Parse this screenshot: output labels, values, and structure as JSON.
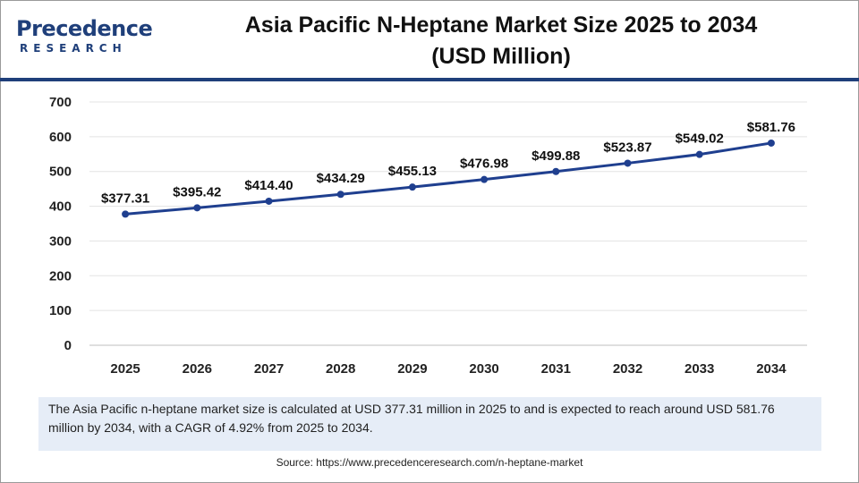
{
  "brand": {
    "name": "Precedence",
    "sub": "RESEARCH",
    "color": "#1f3f7a"
  },
  "title_line1": "Asia Pacific N-Heptane Market Size 2025 to 2034",
  "title_line2": "(USD Million)",
  "chart_data": {
    "type": "line",
    "categories": [
      "2025",
      "2026",
      "2027",
      "2028",
      "2029",
      "2030",
      "2031",
      "2032",
      "2033",
      "2034"
    ],
    "values": [
      377.31,
      395.42,
      414.4,
      434.29,
      455.13,
      476.98,
      499.88,
      523.87,
      549.02,
      581.76
    ],
    "labels": [
      "$377.31",
      "$395.42",
      "$414.40",
      "$434.29",
      "$455.13",
      "$476.98",
      "$499.88",
      "$523.87",
      "$549.02",
      "$581.76"
    ],
    "ylim": [
      0,
      700
    ],
    "yticks": [
      "0",
      "100",
      "200",
      "300",
      "400",
      "500",
      "600",
      "700"
    ],
    "grid": true,
    "line_color": "#1f3f8f"
  },
  "description": "The Asia Pacific n-heptane market size is calculated at USD 377.31 million in 2025 to and is expected to reach around USD 581.76 million by 2034, with a CAGR of 4.92% from 2025 to 2034.",
  "source": "Source: https://www.precedenceresearch.com/n-heptane-market"
}
